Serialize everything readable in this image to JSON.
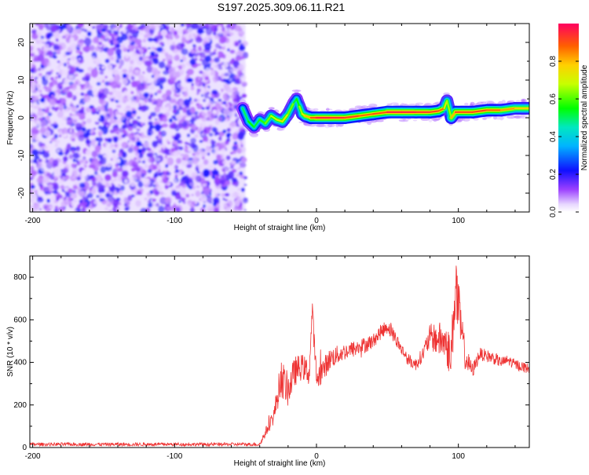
{
  "title": "S197.2025.309.06.11.R21",
  "chart_data": [
    {
      "type": "heatmap",
      "id": "spectrogram",
      "xlabel": "Height of straight line (km)",
      "ylabel": "Frequency (Hz)",
      "xlim": [
        -202,
        150
      ],
      "ylim": [
        -25,
        25
      ],
      "xticks": [
        -200,
        -100,
        0,
        100
      ],
      "yticks": [
        -20,
        -10,
        0,
        10,
        20
      ],
      "colorbar": {
        "label": "Normalized spectral amplitude",
        "range": [
          0,
          1
        ],
        "ticks": [
          "0.0",
          "0.2",
          "0.4",
          "0.6",
          "0.8"
        ]
      },
      "noise_region_x": [
        -202,
        -50
      ],
      "ridge": {
        "x": [
          -52,
          -48,
          -44,
          -40,
          -36,
          -32,
          -28,
          -24,
          -20,
          -16,
          -14,
          -12,
          -10,
          -8,
          -4,
          0,
          10,
          20,
          30,
          40,
          50,
          60,
          70,
          80,
          86,
          90,
          92,
          95,
          98,
          110,
          120,
          130,
          140,
          150
        ],
        "y": [
          2.5,
          -1,
          -2.5,
          -0.5,
          -1.5,
          0.5,
          -0.5,
          -1,
          1,
          4,
          5,
          3,
          1,
          0.5,
          0,
          0,
          0,
          0,
          0.5,
          1,
          1.5,
          1.5,
          1.5,
          1.5,
          1.8,
          2.5,
          4.5,
          0,
          1.5,
          1.5,
          2,
          2,
          2.5,
          2.5
        ],
        "strength": [
          0.4,
          0.6,
          0.5,
          0.55,
          0.6,
          0.65,
          0.7,
          0.75,
          0.7,
          0.55,
          0.5,
          0.6,
          0.7,
          0.75,
          0.85,
          0.95,
          0.95,
          0.92,
          0.9,
          0.85,
          0.95,
          0.97,
          0.95,
          0.92,
          0.9,
          0.85,
          0.6,
          0.7,
          0.9,
          0.92,
          0.9,
          0.85,
          0.8,
          0.75
        ]
      }
    },
    {
      "type": "line",
      "id": "snr",
      "xlabel": "Height of straight line (km)",
      "ylabel": "SNR (10 * v/v)",
      "xlim": [
        -202,
        150
      ],
      "ylim": [
        0,
        900
      ],
      "xticks": [
        -200,
        -100,
        0,
        100
      ],
      "yticks": [
        0,
        200,
        400,
        600,
        800
      ],
      "color": "#ee3333",
      "series": [
        {
          "name": "SNR",
          "x": [
            -202,
            -150,
            -100,
            -60,
            -45,
            -40,
            -30,
            -25,
            -20,
            -15,
            -10,
            -5,
            -3,
            0,
            5,
            10,
            20,
            30,
            40,
            45,
            50,
            55,
            60,
            65,
            70,
            75,
            80,
            85,
            90,
            95,
            98,
            100,
            105,
            110,
            115,
            120,
            125,
            130,
            135,
            140,
            145,
            150
          ],
          "y": [
            15,
            15,
            15,
            15,
            15,
            15,
            150,
            330,
            270,
            360,
            380,
            350,
            650,
            320,
            370,
            420,
            450,
            470,
            500,
            540,
            570,
            520,
            460,
            410,
            390,
            440,
            520,
            510,
            500,
            430,
            780,
            640,
            420,
            360,
            440,
            430,
            420,
            400,
            410,
            390,
            380,
            370
          ],
          "noise_amplitude": [
            8,
            8,
            8,
            8,
            8,
            10,
            40,
            90,
            80,
            70,
            60,
            60,
            50,
            60,
            55,
            50,
            40,
            40,
            35,
            35,
            35,
            35,
            30,
            30,
            30,
            35,
            60,
            80,
            90,
            110,
            180,
            150,
            60,
            35,
            30,
            30,
            30,
            25,
            25,
            25,
            25,
            25
          ]
        }
      ]
    }
  ]
}
